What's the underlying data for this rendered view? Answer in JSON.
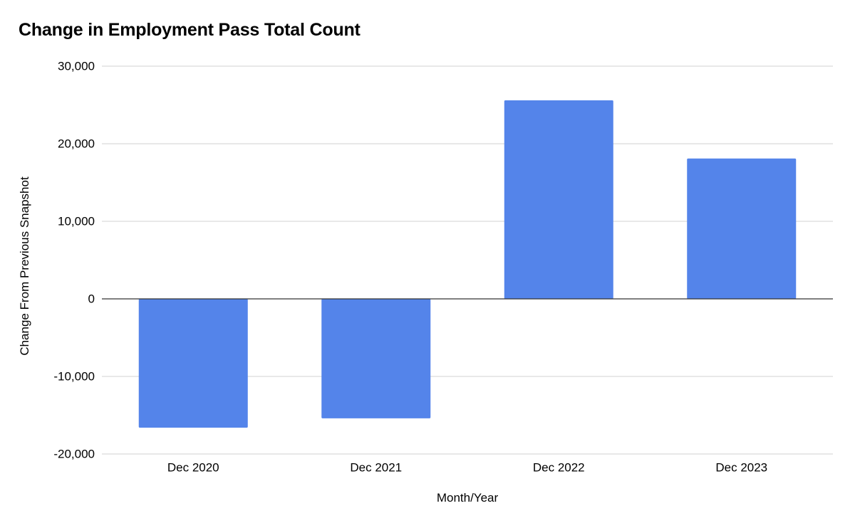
{
  "chart_data": {
    "type": "bar",
    "title": "Change in Employment Pass Total Count",
    "xlabel": "Month/Year",
    "ylabel": "Change From Previous Snapshot",
    "categories": [
      "Dec 2020",
      "Dec 2021",
      "Dec 2022",
      "Dec 2023"
    ],
    "values": [
      -16600,
      -15400,
      25600,
      18100
    ],
    "ylim": [
      -20000,
      30000
    ],
    "yticks": [
      {
        "value": 30000,
        "label": "30,000"
      },
      {
        "value": 20000,
        "label": "20,000"
      },
      {
        "value": 10000,
        "label": "10,000"
      },
      {
        "value": 0,
        "label": "0"
      },
      {
        "value": -10000,
        "label": "-10,000"
      },
      {
        "value": -20000,
        "label": "-20,000"
      }
    ],
    "grid": true,
    "legend": "none",
    "bar_color": "#5484ea",
    "gridline_color": "#d0d0d0",
    "zero_line_color": "#333333"
  }
}
